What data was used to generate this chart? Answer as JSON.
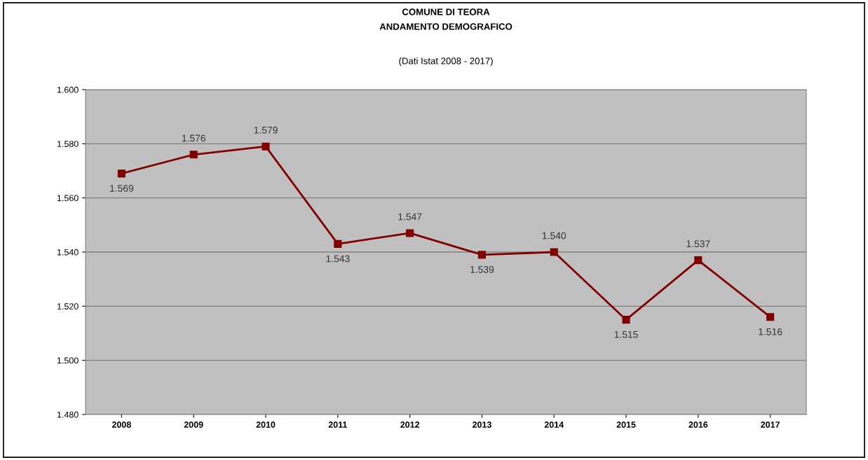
{
  "chart_data": {
    "type": "line",
    "title": "COMUNE DI TEORA\nANDAMENTO DEMOGRAFICO",
    "subtitle": "(Dati Istat 2008 - 2017)",
    "categories": [
      "2008",
      "2009",
      "2010",
      "2011",
      "2012",
      "2013",
      "2014",
      "2015",
      "2016",
      "2017"
    ],
    "series": [
      {
        "color": "#800000",
        "values": [
          1569,
          1576,
          1579,
          1543,
          1547,
          1539,
          1540,
          1515,
          1537,
          1516
        ],
        "value_labels": [
          "1.569",
          "1.576",
          "1.579",
          "1.543",
          "1.547",
          "1.539",
          "1.540",
          "1.515",
          "1.537",
          "1.516"
        ]
      }
    ],
    "ylim": [
      1480,
      1600
    ],
    "yticks": [
      {
        "value": 1480,
        "label": "1.480"
      },
      {
        "value": 1500,
        "label": "1.500"
      },
      {
        "value": 1520,
        "label": "1.520"
      },
      {
        "value": 1540,
        "label": "1.540"
      },
      {
        "value": 1560,
        "label": "1.560"
      },
      {
        "value": 1580,
        "label": "1.580"
      },
      {
        "value": 1600,
        "label": "1.600"
      }
    ],
    "grid": "y",
    "marker": "square",
    "line_style": "solid",
    "legend": false
  }
}
